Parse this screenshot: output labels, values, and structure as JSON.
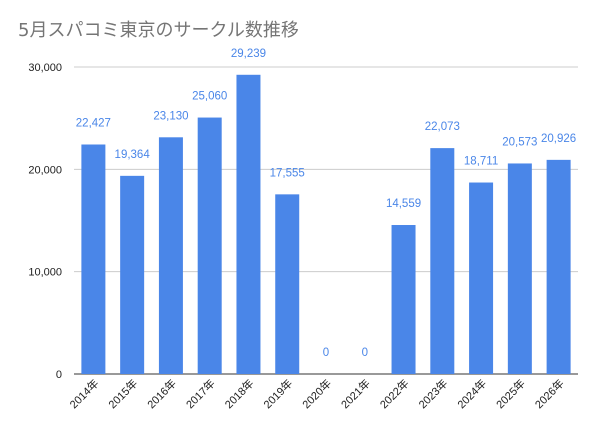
{
  "chart_data": {
    "type": "bar",
    "title": "5月スパコミ東京のサークル数推移",
    "xlabel": "",
    "ylabel": "",
    "categories": [
      "2014年",
      "2015年",
      "2016年",
      "2017年",
      "2018年",
      "2019年",
      "2020年",
      "2021年",
      "2022年",
      "2023年",
      "2024年",
      "2025年",
      "2026年"
    ],
    "values": [
      22427,
      19364,
      23130,
      25060,
      29239,
      17555,
      0,
      0,
      14559,
      22073,
      18711,
      20573,
      20926
    ],
    "data_labels": [
      "22,427",
      "19,364",
      "23,130",
      "25,060",
      "29,239",
      "17,555",
      "0",
      "0",
      "14,559",
      "22,073",
      "18,711",
      "20,573",
      "20,926"
    ],
    "ylim": [
      0,
      30000
    ],
    "yticks": [
      0,
      10000,
      20000,
      30000
    ],
    "ytick_labels": [
      "0",
      "10,000",
      "20,000",
      "30,000"
    ],
    "grid": true,
    "legend": "none",
    "bar_color": "#4a86e8",
    "label_color": "#4a86e8",
    "grid_color": "#cccccc",
    "title_color": "#757575"
  }
}
